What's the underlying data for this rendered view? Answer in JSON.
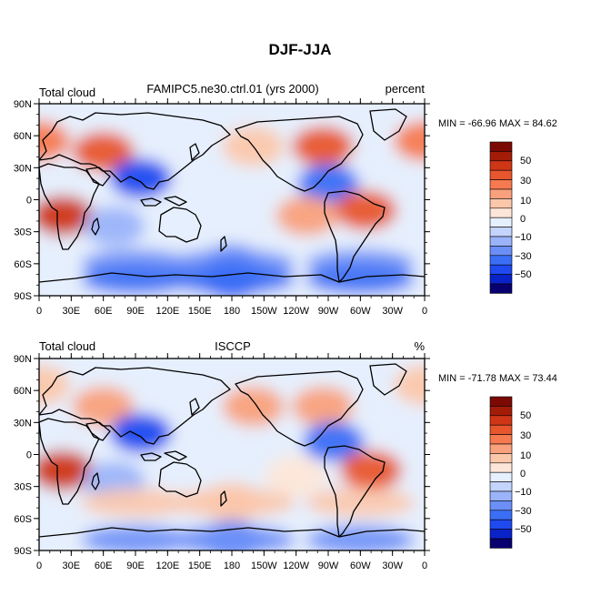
{
  "figure": {
    "title": "DJF-JJA"
  },
  "chart_data": [
    {
      "type": "heatmap",
      "variable": "Total cloud",
      "title": "FAMIPC5.ne30.ctrl.01 (yrs 2000)",
      "units": "percent",
      "stats": "MIN = -66.96 MAX =  84.62",
      "x_ticks": [
        "0",
        "30E",
        "60E",
        "90E",
        "120E",
        "150E",
        "180",
        "150W",
        "120W",
        "90W",
        "60W",
        "30W",
        "0"
      ],
      "y_ticks": [
        "90N",
        "60N",
        "30N",
        "0",
        "30S",
        "60S",
        "90S"
      ],
      "xlim": [
        0,
        360
      ],
      "ylim": [
        -90,
        90
      ],
      "colorbar": {
        "levels": [
          -60,
          -50,
          -40,
          -30,
          -20,
          -10,
          -5,
          0,
          5,
          10,
          20,
          30,
          40,
          50,
          60
        ],
        "labels": [
          "50",
          "30",
          "10",
          "0",
          "−10",
          "−30",
          "−50"
        ]
      },
      "field": [
        {
          "region": "Northern high latitudes",
          "lon": 0,
          "lat": 55,
          "value": 30
        },
        {
          "region": "Eurasia",
          "lon": 60,
          "lat": 45,
          "value": 35
        },
        {
          "region": "North Pacific",
          "lon": 200,
          "lat": 50,
          "value": 10
        },
        {
          "region": "North America",
          "lon": 265,
          "lat": 50,
          "value": 40
        },
        {
          "region": "Southern Africa",
          "lon": 22,
          "lat": -15,
          "value": 45
        },
        {
          "region": "India / Southeast Asia",
          "lon": 95,
          "lat": 20,
          "value": -40
        },
        {
          "region": "Central America / Sahel",
          "lon": 270,
          "lat": 15,
          "value": -35
        },
        {
          "region": "South America",
          "lon": 305,
          "lat": -10,
          "value": 40
        },
        {
          "region": "Southern Indian Ocean",
          "lon": 70,
          "lat": -25,
          "value": -15
        },
        {
          "region": "Southeast Pacific",
          "lon": 250,
          "lat": -15,
          "value": 20
        },
        {
          "region": "Southern Ocean",
          "lon": 180,
          "lat": -60,
          "value": -20
        },
        {
          "region": "Antarctic coast",
          "lon": 180,
          "lat": -75,
          "value": -30
        }
      ]
    },
    {
      "type": "heatmap",
      "variable": "Total cloud",
      "title": "ISCCP",
      "units": "%",
      "stats": "MIN = -71.78 MAX =  73.44",
      "x_ticks": [
        "0",
        "30E",
        "60E",
        "90E",
        "120E",
        "150E",
        "180",
        "150W",
        "120W",
        "90W",
        "60W",
        "30W",
        "0"
      ],
      "y_ticks": [
        "90N",
        "60N",
        "30N",
        "0",
        "30S",
        "60S",
        "90S"
      ],
      "xlim": [
        0,
        360
      ],
      "ylim": [
        -90,
        90
      ],
      "colorbar": {
        "levels": [
          -60,
          -50,
          -40,
          -30,
          -20,
          -10,
          -5,
          0,
          5,
          10,
          20,
          30,
          40,
          50,
          60
        ],
        "labels": [
          "50",
          "30",
          "10",
          "0",
          "−10",
          "−30",
          "−50"
        ]
      },
      "field": [
        {
          "region": "Northern high latitudes",
          "lon": 0,
          "lat": 65,
          "value": 10
        },
        {
          "region": "Eurasia",
          "lon": 60,
          "lat": 45,
          "value": 12
        },
        {
          "region": "North Pacific",
          "lon": 200,
          "lat": 45,
          "value": 15
        },
        {
          "region": "North America",
          "lon": 265,
          "lat": 45,
          "value": 20
        },
        {
          "region": "Southern Africa",
          "lon": 22,
          "lat": -15,
          "value": 45
        },
        {
          "region": "India / Southeast Asia",
          "lon": 95,
          "lat": 20,
          "value": -45
        },
        {
          "region": "Central America",
          "lon": 275,
          "lat": 12,
          "value": -30
        },
        {
          "region": "South America",
          "lon": 310,
          "lat": -15,
          "value": 40
        },
        {
          "region": "Southern Indian Ocean",
          "lon": 70,
          "lat": -25,
          "value": -10
        },
        {
          "region": "Southeast Pacific",
          "lon": 240,
          "lat": -20,
          "value": 5
        },
        {
          "region": "Southern midlatitudes",
          "lon": 180,
          "lat": -45,
          "value": 10
        },
        {
          "region": "Southern Ocean",
          "lon": 180,
          "lat": -80,
          "value": -20
        }
      ]
    }
  ],
  "colors": {
    "scale": [
      "#08006e",
      "#0a23c8",
      "#1e4af0",
      "#3a6ef5",
      "#6b8ff7",
      "#9bb3fa",
      "#c4d4fc",
      "#e6effd",
      "#fde6d8",
      "#fbc7ab",
      "#f9a07c",
      "#f57a50",
      "#e8562e",
      "#cf3616",
      "#a31c08",
      "#7a0a03"
    ],
    "land_outline": "#000000"
  }
}
